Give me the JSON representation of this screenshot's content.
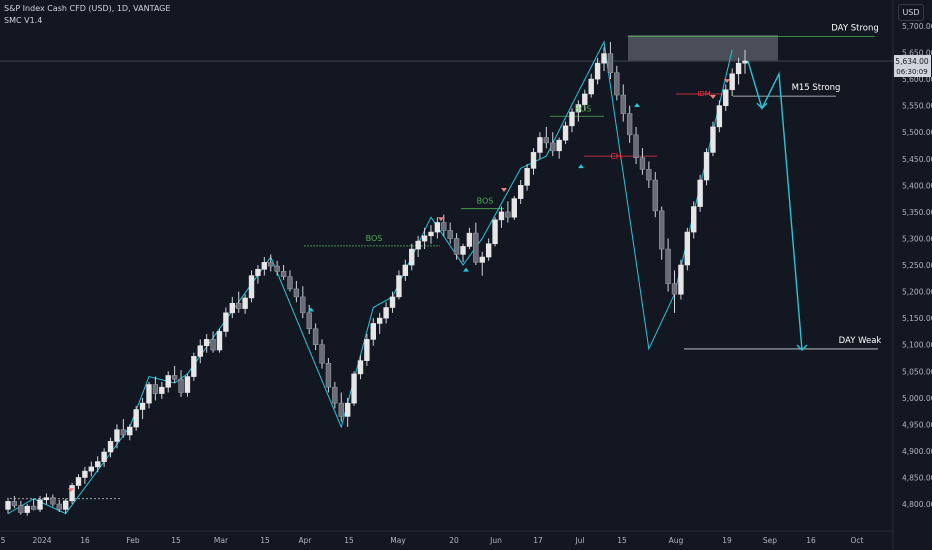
{
  "header": {
    "symbol_line": "S&P Index Cash CFD (USD), 1D, VANTAGE",
    "indicator": "SMC V1.4",
    "currency_button": "USD"
  },
  "price_label": {
    "price": "5,634.00",
    "countdown": "06:30:09"
  },
  "colors": {
    "background": "#131722",
    "candle": "#e6e6e6",
    "candle_border": "#787b86",
    "swing_line": "#26c6da",
    "bos": "#4caf50",
    "choch": "#f23645",
    "projection": "#26c6da"
  },
  "chart_data": {
    "type": "candlestick",
    "y_axis": {
      "range": [
        4770,
        5715
      ],
      "ticks": [
        "5,700.00",
        "5,650.00",
        "5,600.00",
        "5,550.00",
        "5,500.00",
        "5,450.00",
        "5,400.00",
        "5,350.00",
        "5,300.00",
        "5,250.00",
        "5,200.00",
        "5,150.00",
        "5,100.00",
        "5,050.00",
        "5,000.00",
        "4,950.00",
        "4,900.00",
        "4,850.00",
        "4,800.00"
      ]
    },
    "x_axis": {
      "ticks": [
        "5",
        "2024",
        "16",
        "Feb",
        "15",
        "Mar",
        "15",
        "Apr",
        "15",
        "May",
        "20",
        "Jun",
        "17",
        "Jul",
        "15",
        "Aug",
        "19",
        "Sep",
        "16",
        "Oct"
      ]
    },
    "candles_ohlc": [
      [
        4790,
        4812,
        4782,
        4805
      ],
      [
        4805,
        4815,
        4792,
        4797
      ],
      [
        4797,
        4806,
        4780,
        4784
      ],
      [
        4784,
        4800,
        4778,
        4796
      ],
      [
        4796,
        4810,
        4788,
        4790
      ],
      [
        4790,
        4815,
        4785,
        4808
      ],
      [
        4808,
        4820,
        4799,
        4812
      ],
      [
        4812,
        4818,
        4795,
        4800
      ],
      [
        4800,
        4808,
        4785,
        4790
      ],
      [
        4790,
        4810,
        4782,
        4806
      ],
      [
        4806,
        4840,
        4800,
        4835
      ],
      [
        4835,
        4856,
        4828,
        4850
      ],
      [
        4850,
        4870,
        4838,
        4862
      ],
      [
        4862,
        4880,
        4852,
        4870
      ],
      [
        4870,
        4890,
        4860,
        4880
      ],
      [
        4880,
        4905,
        4870,
        4898
      ],
      [
        4898,
        4925,
        4888,
        4918
      ],
      [
        4918,
        4950,
        4905,
        4940
      ],
      [
        4940,
        4960,
        4925,
        4930
      ],
      [
        4930,
        4950,
        4920,
        4945
      ],
      [
        4945,
        4985,
        4938,
        4978
      ],
      [
        4978,
        5000,
        4960,
        4990
      ],
      [
        4990,
        5030,
        4980,
        5025
      ],
      [
        5025,
        5040,
        4995,
        5008
      ],
      [
        5008,
        5030,
        4998,
        5020
      ],
      [
        5020,
        5050,
        5010,
        5042
      ],
      [
        5042,
        5060,
        5028,
        5035
      ],
      [
        5035,
        5052,
        5002,
        5010
      ],
      [
        5010,
        5045,
        5002,
        5040
      ],
      [
        5040,
        5085,
        5032,
        5078
      ],
      [
        5078,
        5110,
        5065,
        5098
      ],
      [
        5098,
        5120,
        5085,
        5110
      ],
      [
        5110,
        5125,
        5085,
        5090
      ],
      [
        5090,
        5130,
        5085,
        5125
      ],
      [
        5125,
        5170,
        5115,
        5160
      ],
      [
        5160,
        5190,
        5150,
        5178
      ],
      [
        5178,
        5200,
        5160,
        5168
      ],
      [
        5168,
        5195,
        5158,
        5188
      ],
      [
        5188,
        5240,
        5180,
        5230
      ],
      [
        5230,
        5250,
        5215,
        5242
      ],
      [
        5242,
        5265,
        5230,
        5255
      ],
      [
        5255,
        5270,
        5238,
        5248
      ],
      [
        5248,
        5258,
        5230,
        5238
      ],
      [
        5238,
        5250,
        5222,
        5228
      ],
      [
        5228,
        5240,
        5200,
        5205
      ],
      [
        5205,
        5220,
        5180,
        5190
      ],
      [
        5190,
        5210,
        5150,
        5160
      ],
      [
        5160,
        5175,
        5120,
        5130
      ],
      [
        5130,
        5140,
        5090,
        5100
      ],
      [
        5100,
        5110,
        5055,
        5065
      ],
      [
        5065,
        5075,
        5010,
        5020
      ],
      [
        5020,
        5030,
        4980,
        4990
      ],
      [
        4990,
        5010,
        4955,
        4965
      ],
      [
        4965,
        5000,
        4945,
        4990
      ],
      [
        4990,
        5050,
        4985,
        5045
      ],
      [
        5045,
        5080,
        5035,
        5070
      ],
      [
        5070,
        5120,
        5060,
        5110
      ],
      [
        5110,
        5150,
        5098,
        5140
      ],
      [
        5140,
        5160,
        5120,
        5150
      ],
      [
        5150,
        5180,
        5140,
        5170
      ],
      [
        5170,
        5200,
        5160,
        5190
      ],
      [
        5190,
        5240,
        5185,
        5230
      ],
      [
        5230,
        5260,
        5220,
        5250
      ],
      [
        5250,
        5290,
        5240,
        5280
      ],
      [
        5280,
        5305,
        5265,
        5295
      ],
      [
        5295,
        5320,
        5280,
        5305
      ],
      [
        5305,
        5325,
        5290,
        5312
      ],
      [
        5312,
        5340,
        5300,
        5330
      ],
      [
        5330,
        5345,
        5305,
        5315
      ],
      [
        5315,
        5330,
        5290,
        5300
      ],
      [
        5300,
        5310,
        5260,
        5270
      ],
      [
        5270,
        5290,
        5255,
        5285
      ],
      [
        5285,
        5320,
        5280,
        5310
      ],
      [
        5310,
        5330,
        5250,
        5255
      ],
      [
        5255,
        5275,
        5230,
        5265
      ],
      [
        5265,
        5300,
        5258,
        5290
      ],
      [
        5290,
        5340,
        5285,
        5335
      ],
      [
        5335,
        5360,
        5320,
        5350
      ],
      [
        5350,
        5370,
        5330,
        5340
      ],
      [
        5340,
        5380,
        5335,
        5375
      ],
      [
        5375,
        5410,
        5365,
        5400
      ],
      [
        5400,
        5440,
        5390,
        5432
      ],
      [
        5432,
        5470,
        5420,
        5462
      ],
      [
        5462,
        5500,
        5450,
        5490
      ],
      [
        5490,
        5510,
        5470,
        5480
      ],
      [
        5480,
        5500,
        5455,
        5465
      ],
      [
        5465,
        5490,
        5450,
        5485
      ],
      [
        5485,
        5520,
        5478,
        5512
      ],
      [
        5512,
        5545,
        5500,
        5538
      ],
      [
        5538,
        5560,
        5520,
        5552
      ],
      [
        5552,
        5580,
        5540,
        5572
      ],
      [
        5572,
        5610,
        5565,
        5600
      ],
      [
        5600,
        5640,
        5590,
        5630
      ],
      [
        5630,
        5660,
        5615,
        5648
      ],
      [
        5648,
        5670,
        5600,
        5612
      ],
      [
        5612,
        5625,
        5560,
        5570
      ],
      [
        5570,
        5590,
        5520,
        5535
      ],
      [
        5535,
        5550,
        5480,
        5495
      ],
      [
        5495,
        5510,
        5440,
        5452
      ],
      [
        5452,
        5470,
        5420,
        5430
      ],
      [
        5430,
        5445,
        5395,
        5410
      ],
      [
        5410,
        5425,
        5340,
        5352
      ],
      [
        5352,
        5360,
        5260,
        5280
      ],
      [
        5280,
        5300,
        5200,
        5215
      ],
      [
        5215,
        5240,
        5160,
        5195
      ],
      [
        5195,
        5260,
        5185,
        5250
      ],
      [
        5250,
        5320,
        5240,
        5312
      ],
      [
        5312,
        5370,
        5300,
        5360
      ],
      [
        5360,
        5420,
        5350,
        5410
      ],
      [
        5410,
        5470,
        5400,
        5462
      ],
      [
        5462,
        5520,
        5455,
        5510
      ],
      [
        5510,
        5560,
        5500,
        5550
      ],
      [
        5550,
        5590,
        5540,
        5580
      ],
      [
        5580,
        5620,
        5568,
        5610
      ],
      [
        5610,
        5640,
        5590,
        5630
      ],
      [
        5630,
        5655,
        5610,
        5634
      ]
    ],
    "bos_labels": [
      "BOS",
      "BOS",
      "BOS"
    ],
    "choch_labels": [
      "CH"
    ],
    "idm_labels": [
      "IDM"
    ],
    "zone_labels": [
      "DAY Strong",
      "M15 Strong",
      "DAY Weak"
    ],
    "levels": {
      "day_strong": 5680,
      "m15_strong": 5568,
      "day_weak": 5092,
      "bos_1": 5286,
      "bos_2": 5356,
      "bos_3": 5530,
      "choch": 5455,
      "idm": 5572,
      "last_price": 5634
    },
    "projection_path": [
      [
        5634,
        0
      ],
      [
        5545,
        1
      ],
      [
        5610,
        2
      ],
      [
        5090,
        3
      ]
    ]
  }
}
